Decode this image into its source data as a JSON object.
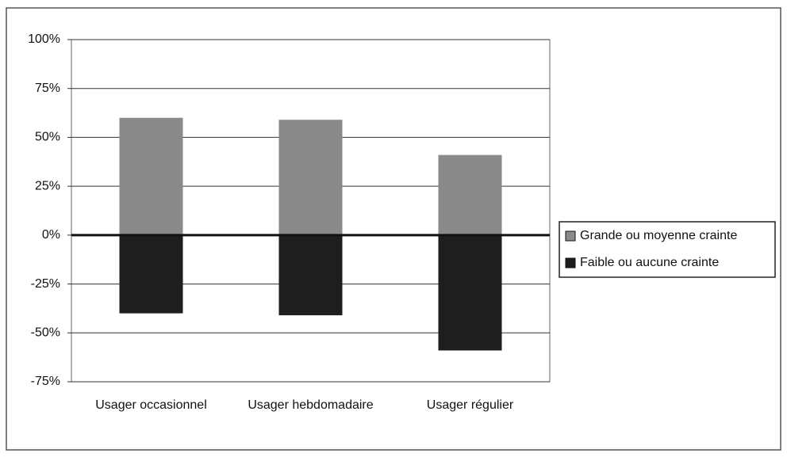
{
  "chart_data": {
    "type": "bar",
    "categories": [
      "Usager occasionnel",
      "Usager hebdomadaire",
      "Usager régulier"
    ],
    "series": [
      {
        "name": "Grande ou moyenne crainte",
        "color": "#8a8a8a",
        "values": [
          60,
          59,
          41
        ]
      },
      {
        "name": "Faible ou aucune crainte",
        "color": "#1e1e1e",
        "values": [
          -40,
          -41,
          -59
        ]
      }
    ],
    "ylim": [
      -75,
      100
    ],
    "yticks": [
      {
        "value": -75,
        "label": "-75%"
      },
      {
        "value": -50,
        "label": "-50%"
      },
      {
        "value": -25,
        "label": "-25%"
      },
      {
        "value": 0,
        "label": "0%"
      },
      {
        "value": 25,
        "label": "25%"
      },
      {
        "value": 50,
        "label": "50%"
      },
      {
        "value": 75,
        "label": "75%"
      },
      {
        "value": 100,
        "label": "100%"
      }
    ],
    "grid": true,
    "legend": "right"
  }
}
